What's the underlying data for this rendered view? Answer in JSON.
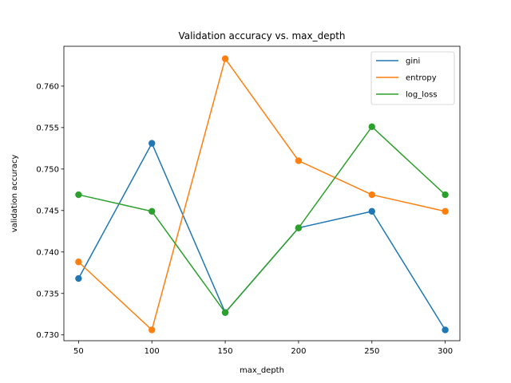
{
  "chart_data": {
    "type": "line",
    "title": "Validation accuracy vs. max_depth",
    "xlabel": "max_depth",
    "ylabel": "validation accuracy",
    "x": [
      50,
      100,
      150,
      200,
      250,
      300
    ],
    "xticks": [
      "50",
      "100",
      "150",
      "200",
      "250",
      "300"
    ],
    "yticks": [
      "0.730",
      "0.735",
      "0.740",
      "0.745",
      "0.750",
      "0.755",
      "0.760"
    ],
    "xlim": [
      40,
      310
    ],
    "ylim": [
      0.7293,
      0.7648
    ],
    "grid": false,
    "legend_position": "top-right",
    "markers": "circle",
    "series": [
      {
        "name": "gini",
        "color": "#1f77b4",
        "values": [
          0.7368,
          0.7531,
          0.7327,
          0.7429,
          0.7449,
          0.7306
        ]
      },
      {
        "name": "entropy",
        "color": "#ff7f0e",
        "values": [
          0.7388,
          0.7306,
          0.7633,
          0.751,
          0.7469,
          0.7449
        ]
      },
      {
        "name": "log_loss",
        "color": "#2ca02c",
        "values": [
          0.7469,
          0.7449,
          0.7327,
          0.7429,
          0.7551,
          0.7469
        ]
      }
    ]
  }
}
